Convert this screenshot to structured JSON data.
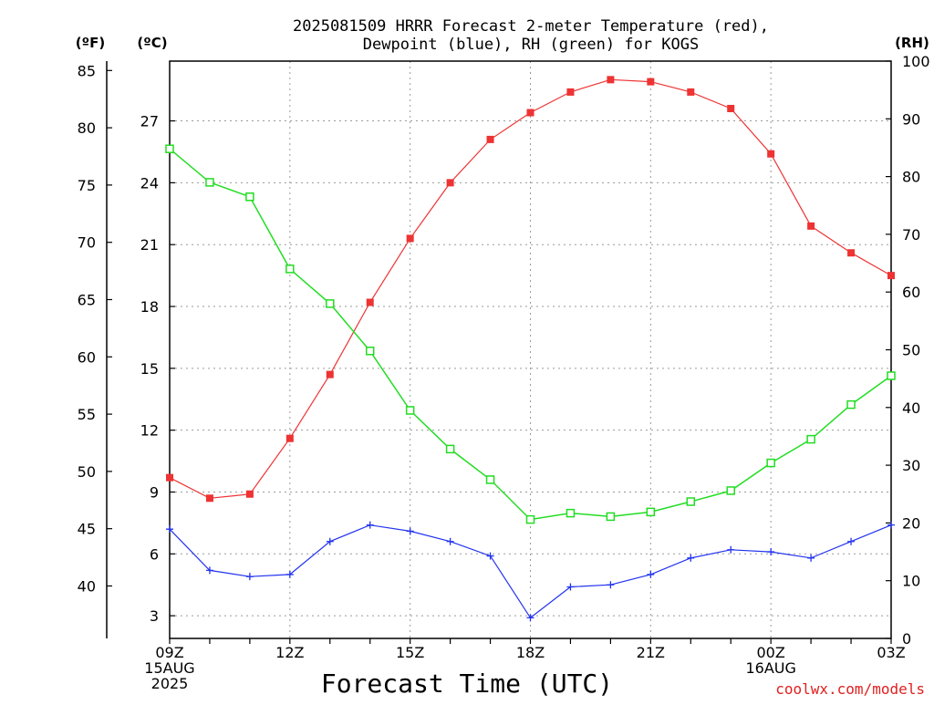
{
  "header": {
    "title_line1": "2025081509 HRRR Forecast 2-meter Temperature (red),",
    "title_line2": "Dewpoint (blue), RH (green) for KOGS",
    "unit_f": "(ºF)",
    "unit_c": "(ºC)",
    "unit_rh": "(RH)"
  },
  "footer": {
    "xlabel": "Forecast Time (UTC)",
    "credit": "coolwx.com/models",
    "credit_color": "#e02020"
  },
  "chart_data": {
    "type": "line",
    "x": [
      "09Z",
      "10Z",
      "11Z",
      "12Z",
      "13Z",
      "14Z",
      "15Z",
      "16Z",
      "17Z",
      "18Z",
      "19Z",
      "20Z",
      "21Z",
      "22Z",
      "23Z",
      "00Z",
      "01Z",
      "02Z",
      "03Z"
    ],
    "x_tick_labels": [
      {
        "index": 0,
        "lines": [
          "09Z",
          "15AUG",
          "2025"
        ]
      },
      {
        "index": 3,
        "lines": [
          "12Z"
        ]
      },
      {
        "index": 6,
        "lines": [
          "15Z"
        ]
      },
      {
        "index": 9,
        "lines": [
          "18Z"
        ]
      },
      {
        "index": 12,
        "lines": [
          "21Z"
        ]
      },
      {
        "index": 15,
        "lines": [
          "00Z",
          "16AUG"
        ]
      },
      {
        "index": 18,
        "lines": [
          "03Z"
        ]
      }
    ],
    "xlabel": "Forecast Time (UTC)",
    "grid": true,
    "y_axis_celsius": {
      "label": "(ºC)",
      "ticks": [
        3,
        6,
        9,
        12,
        15,
        18,
        21,
        24,
        27
      ],
      "range": [
        1.9,
        29.9
      ]
    },
    "y_axis_fahrenheit": {
      "label": "(ºF)",
      "ticks": [
        40,
        45,
        50,
        55,
        60,
        65,
        70,
        75,
        80,
        85
      ]
    },
    "y_axis_rh": {
      "label": "(RH)",
      "ticks": [
        0,
        10,
        20,
        30,
        40,
        50,
        60,
        70,
        80,
        90,
        100
      ],
      "range": [
        0,
        100
      ]
    },
    "series": [
      {
        "name": "Temperature",
        "unit": "C",
        "axis": "celsius",
        "color": "#ee3333",
        "marker": "filled-square",
        "values": [
          9.7,
          8.7,
          8.9,
          11.6,
          14.7,
          18.2,
          21.3,
          24.0,
          26.1,
          27.4,
          28.4,
          29.0,
          28.9,
          28.4,
          27.6,
          25.4,
          21.9,
          20.6,
          19.5
        ]
      },
      {
        "name": "Dewpoint",
        "unit": "C",
        "axis": "celsius",
        "color": "#2233ee",
        "marker": "plus",
        "values": [
          7.2,
          5.2,
          4.9,
          5.0,
          6.6,
          7.4,
          7.1,
          6.6,
          5.9,
          2.9,
          4.4,
          4.5,
          5.0,
          5.8,
          6.2,
          6.1,
          5.8,
          6.6,
          7.4
        ]
      },
      {
        "name": "RH",
        "unit": "%",
        "axis": "rh",
        "color": "#22dd22",
        "marker": "open-square",
        "values": [
          84.8,
          79.0,
          76.5,
          64.0,
          58.0,
          49.8,
          39.5,
          32.8,
          27.5,
          20.6,
          21.7,
          21.1,
          21.9,
          23.7,
          25.6,
          30.4,
          34.5,
          40.5,
          45.5
        ]
      }
    ]
  }
}
